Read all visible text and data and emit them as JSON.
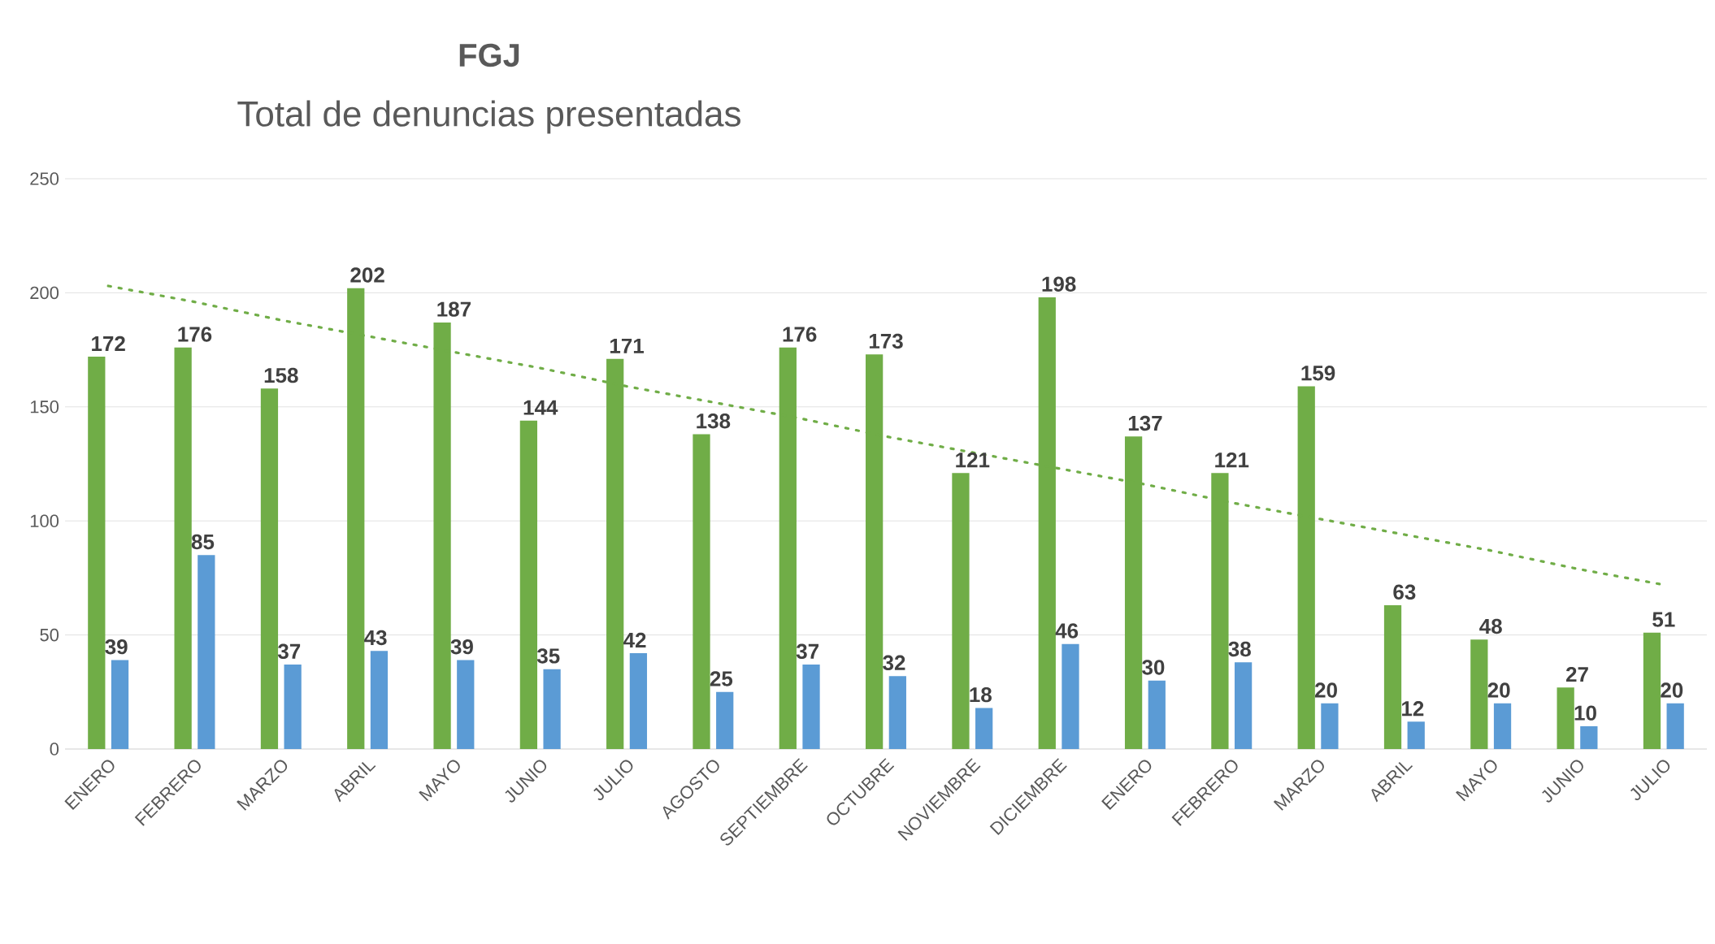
{
  "chart_data": {
    "type": "bar",
    "title": "FGJ",
    "subtitle": "Total de denuncias presentadas",
    "categories": [
      "ENERO",
      "FEBRERO",
      "MARZO",
      "ABRIL",
      "MAYO",
      "JUNIO",
      "JULIO",
      "AGOSTO",
      "SEPTIEMBRE",
      "OCTUBRE",
      "NOVIEMBRE",
      "DICIEMBRE",
      "ENERO",
      "FEBRERO",
      "MARZO",
      "ABRIL",
      "MAYO",
      "JUNIO",
      "JULIO"
    ],
    "series": [
      {
        "color": "#70ad47",
        "values": [
          172,
          176,
          158,
          202,
          187,
          144,
          171,
          138,
          176,
          173,
          121,
          198,
          137,
          121,
          159,
          63,
          48,
          27,
          51
        ]
      },
      {
        "color": "#5b9bd5",
        "values": [
          39,
          85,
          37,
          43,
          39,
          35,
          42,
          25,
          37,
          32,
          18,
          46,
          30,
          38,
          20,
          12,
          20,
          10,
          20
        ]
      },
      {
        "type": "line",
        "color": "#70ad47",
        "line_style": "dotted",
        "marker": "none",
        "values": [
          203,
          196,
          188,
          181,
          174,
          167,
          159,
          152,
          145,
          137,
          130,
          123,
          116,
          108,
          101,
          94,
          87,
          79,
          72
        ],
        "value_labels": [
          null,
          null,
          null,
          null,
          null,
          null,
          null,
          null,
          null,
          null,
          null,
          null,
          null,
          null,
          null,
          null,
          null,
          null,
          null
        ]
      }
    ],
    "ylim": [
      0,
      250
    ],
    "yticks": [
      0,
      50,
      100,
      150,
      200,
      250
    ],
    "grid": "y",
    "data_labels": true
  }
}
